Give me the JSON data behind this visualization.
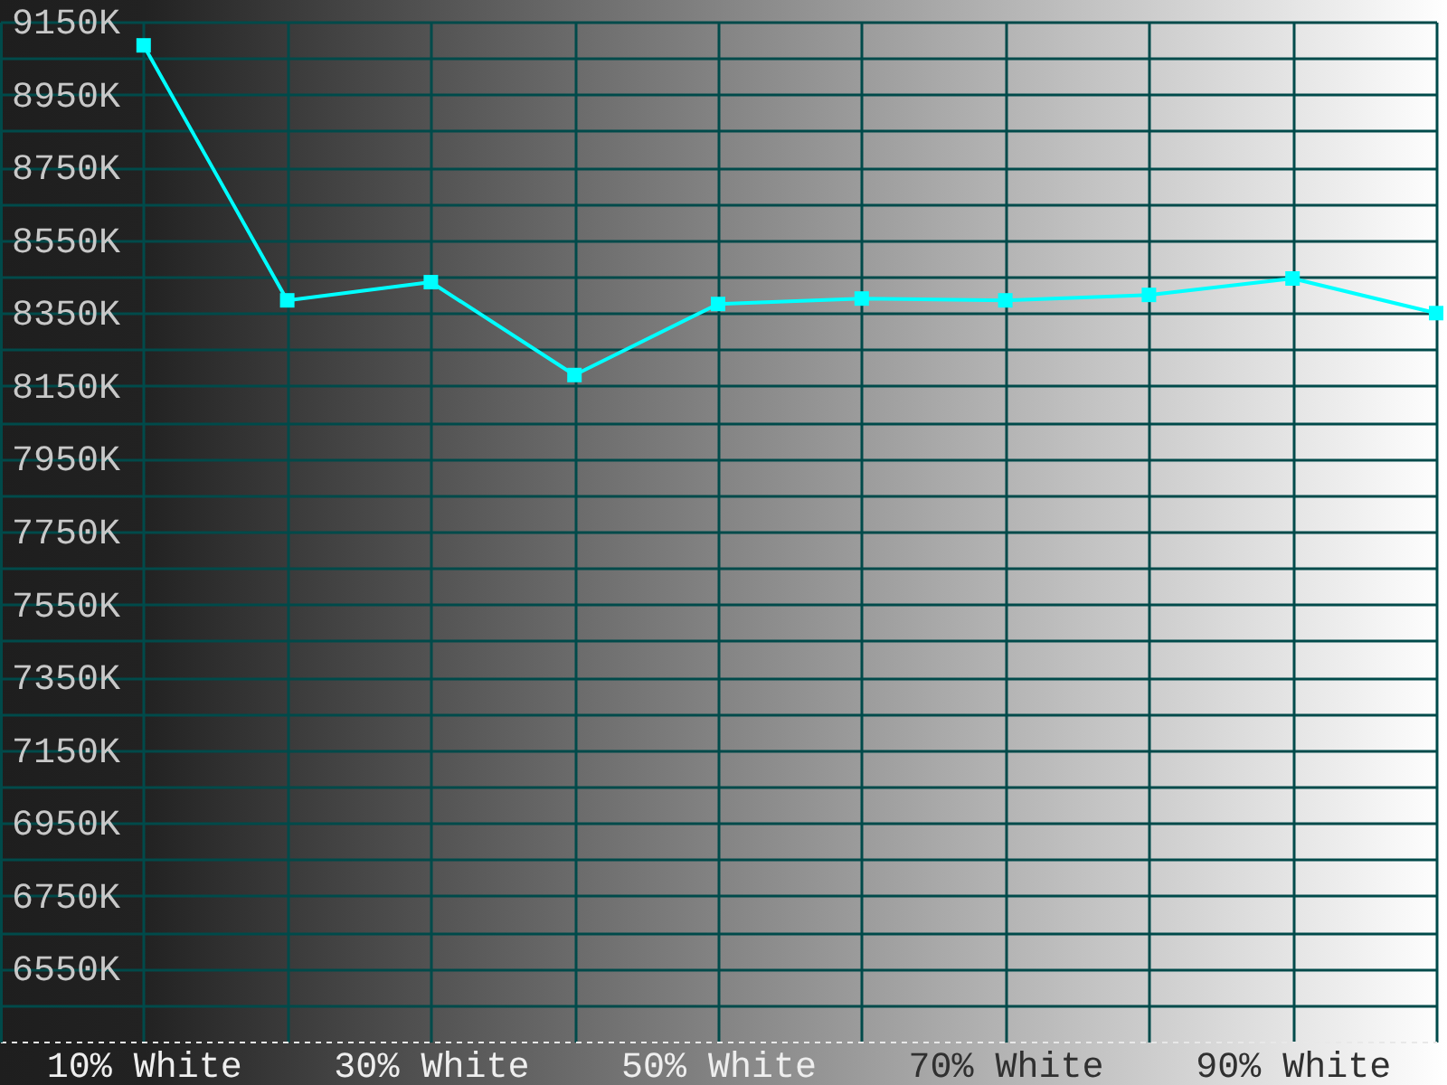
{
  "chart_data": {
    "type": "line",
    "categories": [
      "10% White",
      null,
      "30% White",
      null,
      "50% White",
      null,
      "70% White",
      null,
      "90% White",
      null
    ],
    "values": [
      9085,
      8385,
      8435,
      8180,
      8375,
      8390,
      8385,
      8400,
      8445,
      8350
    ],
    "color": "#00ffff",
    "marker": "square",
    "ylim": [
      6350,
      9150
    ],
    "yticks": [
      {
        "value": 6450,
        "label": null
      },
      {
        "value": 6550,
        "label": "6550K"
      },
      {
        "value": 6650,
        "label": null
      },
      {
        "value": 6750,
        "label": "6750K"
      },
      {
        "value": 6850,
        "label": null
      },
      {
        "value": 6950,
        "label": "6950K"
      },
      {
        "value": 7050,
        "label": null
      },
      {
        "value": 7150,
        "label": "7150K"
      },
      {
        "value": 7250,
        "label": null
      },
      {
        "value": 7350,
        "label": "7350K"
      },
      {
        "value": 7450,
        "label": null
      },
      {
        "value": 7550,
        "label": "7550K"
      },
      {
        "value": 7650,
        "label": null
      },
      {
        "value": 7750,
        "label": "7750K"
      },
      {
        "value": 7850,
        "label": null
      },
      {
        "value": 7950,
        "label": "7950K"
      },
      {
        "value": 8050,
        "label": null
      },
      {
        "value": 8150,
        "label": "8150K"
      },
      {
        "value": 8250,
        "label": null
      },
      {
        "value": 8350,
        "label": "8350K"
      },
      {
        "value": 8450,
        "label": null
      },
      {
        "value": 8550,
        "label": "8550K"
      },
      {
        "value": 8650,
        "label": null
      },
      {
        "value": 8750,
        "label": "8750K"
      },
      {
        "value": 8850,
        "label": null
      },
      {
        "value": 8950,
        "label": "8950K"
      },
      {
        "value": 9050,
        "label": null
      },
      {
        "value": 9150,
        "label": "9150K"
      }
    ],
    "grid": true
  }
}
